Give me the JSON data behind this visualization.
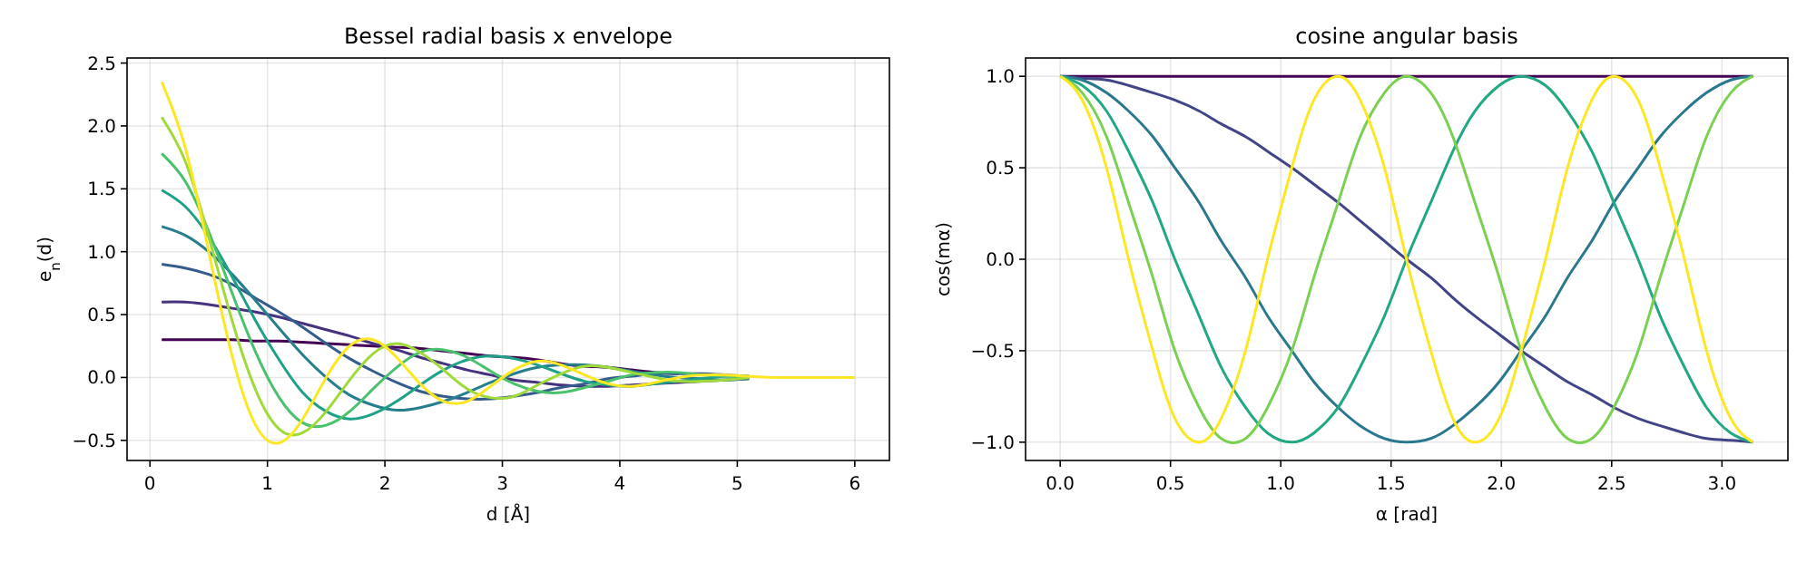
{
  "chart_data": [
    {
      "type": "line",
      "title": "Bessel radial basis x envelope",
      "xlabel": "d [Å]",
      "ylabel": "e$_{n}$(d)",
      "x": [
        0.1,
        0.3,
        0.5,
        0.7,
        0.9,
        1.1,
        1.3,
        1.5,
        1.7,
        1.9,
        2.1,
        2.3,
        2.5,
        2.7,
        2.9,
        3.1,
        3.3,
        3.5,
        3.7,
        3.9,
        4.1,
        4.3,
        4.5,
        4.7,
        4.9,
        5.1,
        5.3,
        5.5,
        5.7,
        5.9,
        6.0
      ],
      "series": [
        {
          "color": "#440154",
          "values": [
            0.3,
            0.3,
            0.3,
            0.3,
            0.29,
            0.29,
            0.28,
            0.27,
            0.26,
            0.25,
            0.24,
            0.23,
            0.21,
            0.19,
            0.17,
            0.16,
            0.14,
            0.11,
            0.09,
            0.08,
            0.06,
            0.04,
            0.03,
            null,
            null,
            null,
            null,
            null,
            null,
            null,
            null
          ]
        },
        {
          "color": "#46327e",
          "values": [
            0.6,
            0.6,
            0.58,
            0.55,
            0.52,
            0.48,
            0.43,
            0.38,
            0.33,
            0.27,
            0.22,
            0.16,
            0.11,
            0.06,
            0.02,
            -0.02,
            -0.04,
            -0.06,
            -0.07,
            -0.07,
            -0.06,
            -0.05,
            -0.04,
            -0.03,
            -0.02,
            -0.01,
            null,
            null,
            null,
            null,
            null
          ]
        },
        {
          "color": "#365c8d",
          "values": [
            0.9,
            0.87,
            0.82,
            0.74,
            0.63,
            0.52,
            0.4,
            0.27,
            0.15,
            0.05,
            -0.04,
            -0.11,
            -0.15,
            -0.17,
            -0.17,
            -0.15,
            -0.12,
            -0.08,
            -0.05,
            -0.01,
            0.01,
            0.03,
            0.03,
            0.03,
            0.02,
            0.01,
            null,
            null,
            null,
            null,
            null
          ]
        },
        {
          "color": "#277f8e",
          "values": [
            1.2,
            1.13,
            1,
            0.82,
            0.61,
            0.39,
            0.18,
            0,
            -0.14,
            -0.22,
            -0.26,
            -0.24,
            -0.19,
            -0.12,
            -0.04,
            0.03,
            0.08,
            0.1,
            0.1,
            0.08,
            0.05,
            0.02,
            0,
            -0.01,
            -0.02,
            -0.01,
            null,
            null,
            null,
            null,
            null
          ]
        },
        {
          "color": "#1fa187",
          "values": [
            1.49,
            1.36,
            1.12,
            0.8,
            0.45,
            0.14,
            -0.12,
            -0.27,
            -0.33,
            -0.29,
            -0.19,
            -0.06,
            0.06,
            0.14,
            0.17,
            0.15,
            0.1,
            0.03,
            -0.03,
            -0.06,
            -0.07,
            -0.05,
            -0.03,
            -0.01,
            0.01,
            0.01,
            null,
            null,
            null,
            null,
            null
          ]
        },
        {
          "color": "#4ac16d",
          "values": [
            1.78,
            1.56,
            1.16,
            0.67,
            0.2,
            -0.16,
            -0.36,
            -0.38,
            -0.27,
            -0.09,
            0.08,
            0.2,
            0.22,
            0.16,
            0.05,
            -0.05,
            -0.11,
            -0.12,
            -0.08,
            -0.03,
            0.02,
            0.04,
            0.04,
            0.02,
            0.01,
            0,
            null,
            null,
            null,
            null,
            null
          ]
        },
        {
          "color": "#a0da39",
          "values": [
            2.07,
            1.72,
            1.12,
            0.45,
            -0.1,
            -0.41,
            -0.44,
            -0.27,
            -0.02,
            0.19,
            0.27,
            0.2,
            0.06,
            -0.09,
            -0.16,
            -0.15,
            -0.06,
            0.03,
            0.09,
            0.08,
            0.04,
            0,
            -0.03,
            -0.03,
            -0.02,
            0,
            null,
            null,
            null,
            null,
            null
          ]
        },
        {
          "color": "#fde725",
          "values": [
            2.35,
            1.83,
            1,
            0.17,
            -0.38,
            -0.52,
            -0.33,
            0,
            0.25,
            0.3,
            0.16,
            -0.05,
            -0.19,
            -0.19,
            -0.07,
            0.06,
            0.13,
            0.1,
            0.02,
            -0.05,
            -0.07,
            -0.04,
            0,
            0.02,
            0.02,
            0.01,
            0,
            0,
            0,
            0,
            0
          ]
        }
      ],
      "xlim": [
        -0.195,
        6.295
      ],
      "xticks": [
        0,
        1,
        2,
        3,
        4,
        5,
        6
      ],
      "ylim": [
        -0.66,
        2.54
      ],
      "yticks": [
        {
          "value": -0.5,
          "label": "−0.5"
        },
        {
          "value": 0,
          "label": "0.0"
        },
        {
          "value": 0.5,
          "label": "0.5"
        },
        {
          "value": 1,
          "label": "1.0"
        },
        {
          "value": 1.5,
          "label": "1.5"
        },
        {
          "value": 2,
          "label": "2.0"
        },
        {
          "value": 2.5,
          "label": "2.5"
        }
      ],
      "grid": true
    },
    {
      "type": "line",
      "title": "cosine angular basis",
      "xlabel": "α [rad]",
      "ylabel": "cos(mα)",
      "x": [
        0,
        0.1,
        0.21,
        0.31,
        0.42,
        0.52,
        0.63,
        0.73,
        0.84,
        0.94,
        1.05,
        1.15,
        1.26,
        1.36,
        1.47,
        1.57,
        1.68,
        1.78,
        1.88,
        1.99,
        2.09,
        2.2,
        2.3,
        2.41,
        2.51,
        2.62,
        2.72,
        2.83,
        2.93,
        3.04,
        3.14
      ],
      "series": [
        {
          "color": "#440154",
          "values": [
            1,
            1,
            1,
            1,
            1,
            1,
            1,
            1,
            1,
            1,
            1,
            1,
            1,
            1,
            1,
            1,
            1,
            1,
            1,
            1,
            1,
            1,
            1,
            1,
            1,
            1,
            1,
            1,
            1,
            1,
            1
          ]
        },
        {
          "color": "#414487",
          "values": [
            1,
            0.99,
            0.98,
            0.95,
            0.91,
            0.87,
            0.81,
            0.74,
            0.67,
            0.59,
            0.5,
            0.41,
            0.31,
            0.21,
            0.1,
            0,
            -0.1,
            -0.21,
            -0.31,
            -0.41,
            -0.5,
            -0.59,
            -0.67,
            -0.74,
            -0.81,
            -0.87,
            -0.91,
            -0.95,
            -0.98,
            -0.99,
            -1
          ]
        },
        {
          "color": "#2a788e",
          "values": [
            1,
            0.98,
            0.91,
            0.81,
            0.67,
            0.5,
            0.31,
            0.1,
            -0.1,
            -0.31,
            -0.5,
            -0.67,
            -0.81,
            -0.91,
            -0.98,
            -1,
            -0.98,
            -0.91,
            -0.81,
            -0.67,
            -0.5,
            -0.31,
            -0.1,
            0.1,
            0.31,
            0.5,
            0.67,
            0.81,
            0.91,
            0.98,
            1
          ]
        },
        {
          "color": "#22a884",
          "values": [
            1,
            0.95,
            0.81,
            0.59,
            0.31,
            0,
            -0.31,
            -0.59,
            -0.81,
            -0.95,
            -1,
            -0.95,
            -0.81,
            -0.59,
            -0.31,
            0,
            0.31,
            0.59,
            0.81,
            0.95,
            1,
            0.95,
            0.81,
            0.59,
            0.31,
            0,
            -0.31,
            -0.59,
            -0.81,
            -0.95,
            -1
          ]
        },
        {
          "color": "#7ad151",
          "values": [
            1,
            0.91,
            0.67,
            0.31,
            -0.1,
            -0.5,
            -0.81,
            -0.98,
            -0.98,
            -0.81,
            -0.5,
            -0.1,
            0.31,
            0.67,
            0.91,
            1,
            0.91,
            0.67,
            0.31,
            -0.1,
            -0.5,
            -0.81,
            -0.98,
            -0.98,
            -0.81,
            -0.5,
            -0.1,
            0.31,
            0.67,
            0.91,
            1
          ]
        },
        {
          "color": "#fde725",
          "values": [
            1,
            0.87,
            0.5,
            0,
            -0.5,
            -0.87,
            -1,
            -0.87,
            -0.5,
            0,
            0.5,
            0.87,
            1,
            0.87,
            0.5,
            0,
            -0.5,
            -0.87,
            -1,
            -0.87,
            -0.5,
            0,
            0.5,
            0.87,
            1,
            0.87,
            0.5,
            0,
            -0.5,
            -0.87,
            -1
          ]
        }
      ],
      "xlim": [
        -0.157,
        3.299
      ],
      "xticks": [
        {
          "value": 0,
          "label": "0.0"
        },
        {
          "value": 0.5,
          "label": "0.5"
        },
        {
          "value": 1,
          "label": "1.0"
        },
        {
          "value": 1.5,
          "label": "1.5"
        },
        {
          "value": 2,
          "label": "2.0"
        },
        {
          "value": 2.5,
          "label": "2.5"
        },
        {
          "value": 3,
          "label": "3.0"
        }
      ],
      "ylim": [
        -1.1,
        1.1
      ],
      "yticks": [
        {
          "value": -1,
          "label": "−1.0"
        },
        {
          "value": -0.5,
          "label": "−0.5"
        },
        {
          "value": 0,
          "label": "0.0"
        },
        {
          "value": 0.5,
          "label": "0.5"
        },
        {
          "value": 1,
          "label": "1.0"
        }
      ],
      "grid": true
    }
  ]
}
